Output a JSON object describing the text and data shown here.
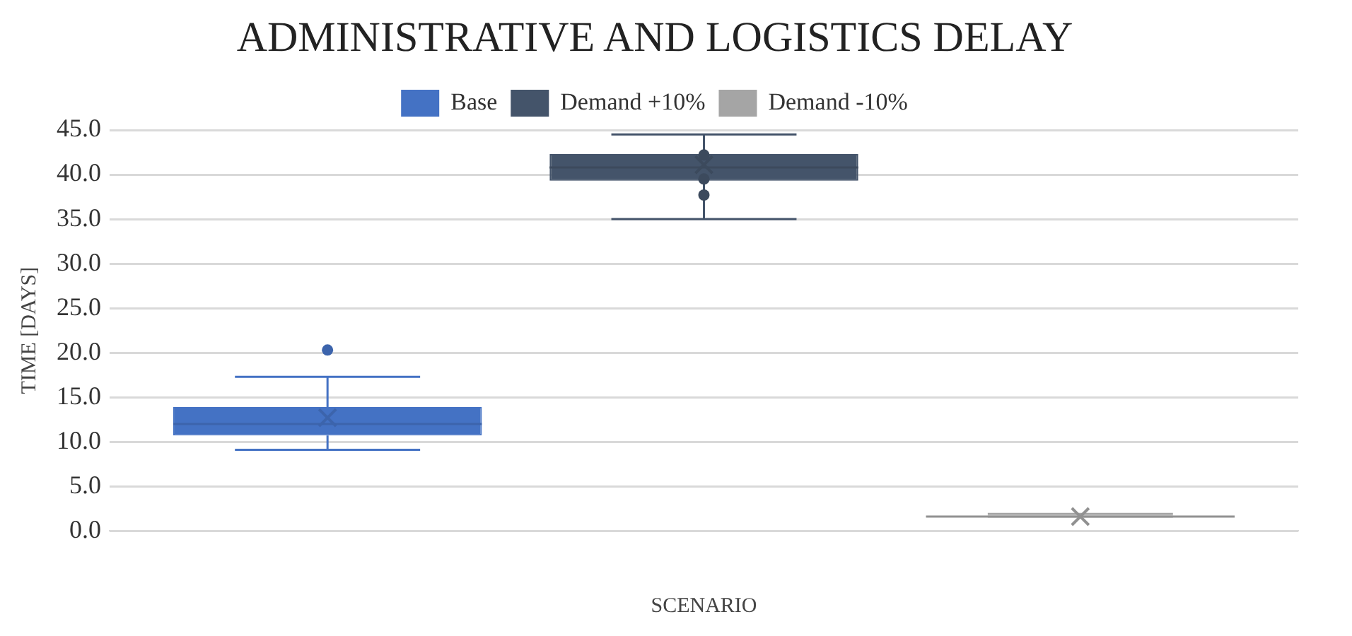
{
  "chart_data": {
    "type": "box",
    "title": "ADMINISTRATIVE AND LOGISTICS DELAY",
    "xlabel": "SCENARIO",
    "ylabel": "TIME [DAYS]",
    "categories": [
      null
    ],
    "series": [
      {
        "name": "Base",
        "color": "#4472c4",
        "boxes": [
          {
            "low": 9.1,
            "q1": 10.7,
            "median": 12.0,
            "q3": 13.9,
            "high": 17.3,
            "mean": 12.7,
            "outliers": [
              20.3
            ]
          }
        ]
      },
      {
        "name": "Demand +10%",
        "color": "#44546a",
        "boxes": [
          {
            "low": 35.0,
            "q1": 39.3,
            "median": 40.8,
            "q3": 42.3,
            "high": 44.5,
            "mean": 41.1,
            "outliers": [
              42.2,
              39.5,
              37.7
            ]
          }
        ]
      },
      {
        "name": "Demand -10%",
        "color": "#a5a5a5",
        "boxes": [
          {
            "low": 1.6,
            "q1": 1.6,
            "median": 1.6,
            "q3": 1.7,
            "high": 1.9,
            "mean": 1.6
          }
        ]
      }
    ],
    "ylim": [
      0,
      45
    ],
    "yticks": [
      {
        "value": 0,
        "label": "0.0"
      },
      {
        "value": 5,
        "label": "5.0"
      },
      {
        "value": 10,
        "label": "10.0"
      },
      {
        "value": 15,
        "label": "15.0"
      },
      {
        "value": 20,
        "label": "20.0"
      },
      {
        "value": 25,
        "label": "25.0"
      },
      {
        "value": 30,
        "label": "30.0"
      },
      {
        "value": 35,
        "label": "35.0"
      },
      {
        "value": 40,
        "label": "40.0"
      },
      {
        "value": 45,
        "label": "45.0"
      }
    ],
    "grid": "y",
    "legend": "top",
    "marker": "circle"
  }
}
